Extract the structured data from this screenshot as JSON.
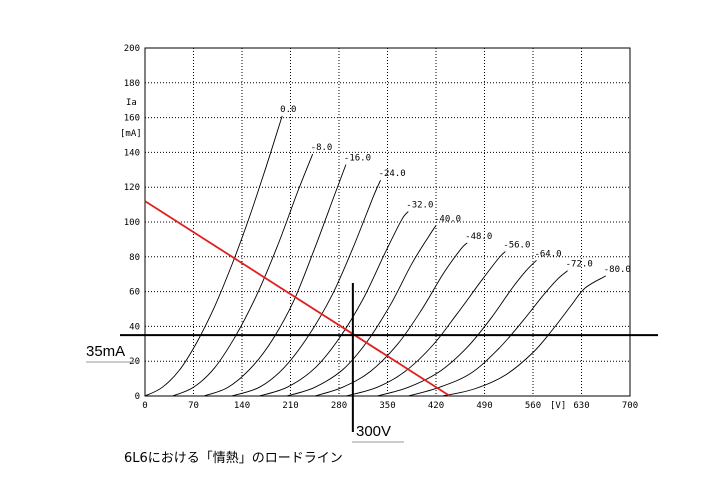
{
  "chart_data": {
    "type": "line",
    "title": "",
    "xlim": [
      0,
      700
    ],
    "ylim": [
      0,
      200
    ],
    "x_ticks": [
      0,
      70,
      140,
      210,
      280,
      350,
      420,
      490,
      560,
      630,
      700
    ],
    "x_tick_labels": [
      "0",
      "70",
      "140",
      "210",
      "280",
      "350",
      "420",
      "490",
      "560",
      "630",
      "700"
    ],
    "y_ticks": [
      0,
      20,
      40,
      60,
      80,
      100,
      120,
      140,
      160,
      180,
      200
    ],
    "y_tick_labels": [
      "0",
      "20",
      "40",
      "60",
      "80",
      "100",
      "120",
      "140",
      "160",
      "180",
      "200"
    ],
    "xlabel": "[V]",
    "ylabel_line1": "Ia",
    "ylabel_line2": "[mA]",
    "grid": true,
    "series": [
      {
        "name": "0.0",
        "points": [
          [
            0,
            0
          ],
          [
            25,
            5
          ],
          [
            50,
            15
          ],
          [
            75,
            31
          ],
          [
            100,
            51
          ],
          [
            125,
            75
          ],
          [
            150,
            102
          ],
          [
            175,
            132
          ],
          [
            198,
            161
          ]
        ]
      },
      {
        "name": "-8.0",
        "points": [
          [
            40,
            0
          ],
          [
            70,
            5
          ],
          [
            100,
            16
          ],
          [
            130,
            34
          ],
          [
            160,
            57
          ],
          [
            190,
            85
          ],
          [
            220,
            117
          ],
          [
            242,
            139
          ]
        ]
      },
      {
        "name": "-16.0",
        "points": [
          [
            85,
            0
          ],
          [
            120,
            5
          ],
          [
            155,
            17
          ],
          [
            185,
            33
          ],
          [
            215,
            55
          ],
          [
            245,
            85
          ],
          [
            275,
            117
          ],
          [
            290,
            133
          ]
        ]
      },
      {
        "name": "-24.0",
        "points": [
          [
            125,
            0
          ],
          [
            165,
            5
          ],
          [
            200,
            16
          ],
          [
            235,
            34
          ],
          [
            270,
            58
          ],
          [
            300,
            85
          ],
          [
            330,
            115
          ],
          [
            340,
            124
          ]
        ]
      },
      {
        "name": "-32.0",
        "points": [
          [
            165,
            0
          ],
          [
            205,
            5
          ],
          [
            245,
            16
          ],
          [
            280,
            33
          ],
          [
            315,
            56
          ],
          [
            345,
            81
          ],
          [
            370,
            101
          ],
          [
            380,
            106
          ]
        ]
      },
      {
        "name": "-40.0",
        "points": [
          [
            205,
            0
          ],
          [
            245,
            5
          ],
          [
            285,
            15
          ],
          [
            320,
            31
          ],
          [
            355,
            53
          ],
          [
            385,
            76
          ],
          [
            410,
            92
          ],
          [
            420,
            98
          ]
        ]
      },
      {
        "name": "-48.0",
        "points": [
          [
            245,
            0
          ],
          [
            285,
            5
          ],
          [
            325,
            14
          ],
          [
            365,
            30
          ],
          [
            400,
            50
          ],
          [
            430,
            70
          ],
          [
            455,
            84
          ],
          [
            465,
            88
          ]
        ]
      },
      {
        "name": "-56.0",
        "points": [
          [
            290,
            0
          ],
          [
            335,
            5
          ],
          [
            375,
            14
          ],
          [
            415,
            29
          ],
          [
            450,
            47
          ],
          [
            485,
            66
          ],
          [
            510,
            79
          ],
          [
            520,
            83
          ]
        ]
      },
      {
        "name": "-64.0",
        "points": [
          [
            335,
            0
          ],
          [
            380,
            5
          ],
          [
            425,
            14
          ],
          [
            465,
            28
          ],
          [
            500,
            45
          ],
          [
            530,
            62
          ],
          [
            550,
            72
          ],
          [
            565,
            78
          ]
        ]
      },
      {
        "name": "-72.0",
        "points": [
          [
            380,
            0
          ],
          [
            425,
            5
          ],
          [
            470,
            13
          ],
          [
            510,
            27
          ],
          [
            545,
            43
          ],
          [
            575,
            58
          ],
          [
            595,
            67
          ],
          [
            610,
            72
          ]
        ]
      },
      {
        "name": "-80.0",
        "points": [
          [
            430,
            0
          ],
          [
            475,
            4
          ],
          [
            520,
            12
          ],
          [
            560,
            25
          ],
          [
            590,
            39
          ],
          [
            615,
            52
          ],
          [
            635,
            62
          ],
          [
            665,
            69
          ]
        ]
      }
    ],
    "load_line": {
      "points": [
        [
          0,
          112
        ],
        [
          440,
          0
        ]
      ],
      "color": "#e02020"
    },
    "operating_point": {
      "x": 300,
      "y": 35,
      "x_label": "300V",
      "y_label": "35mA"
    },
    "caption": "6L6における「情熱」のロードライン"
  }
}
